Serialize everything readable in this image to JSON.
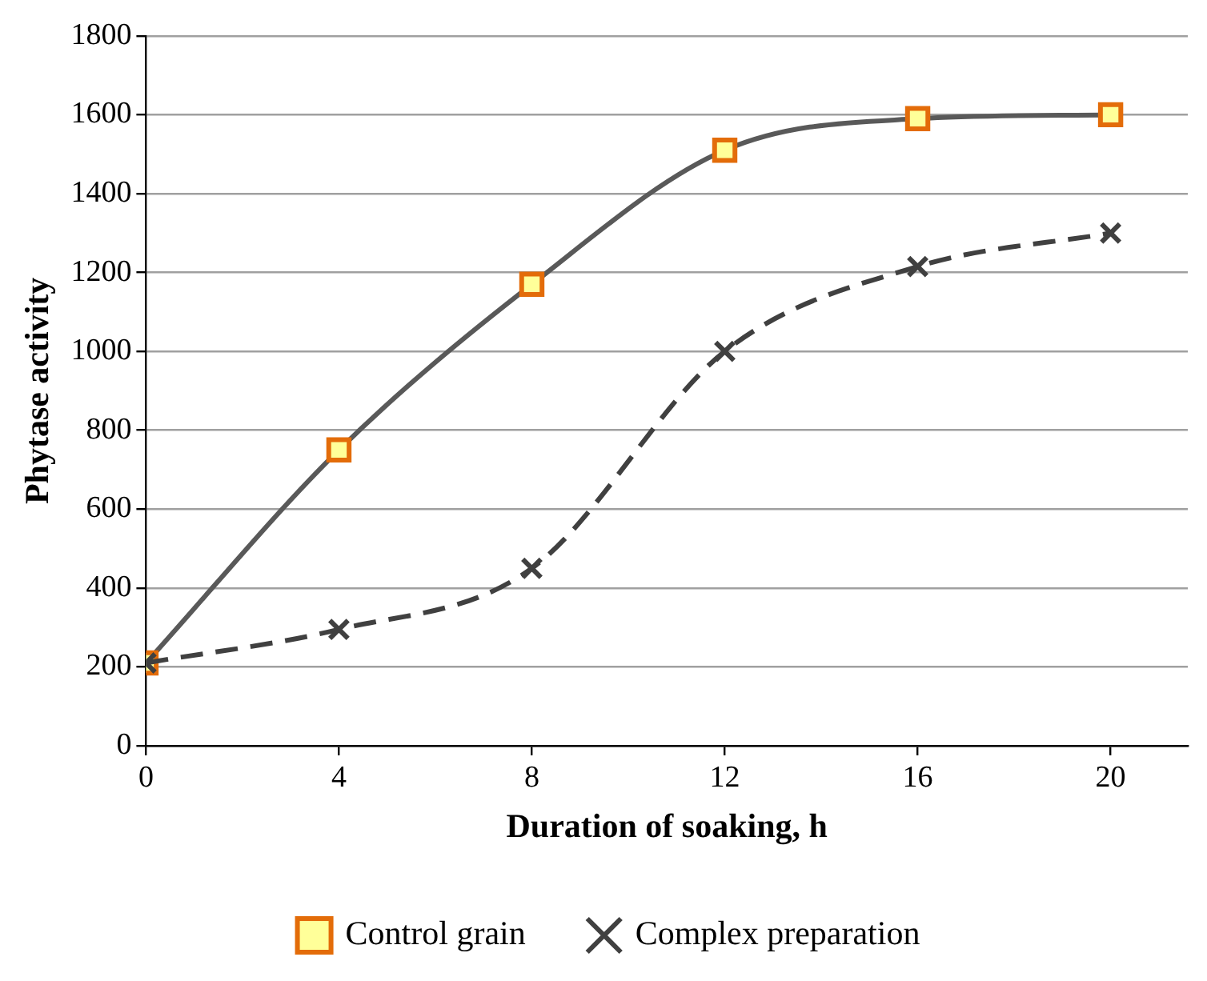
{
  "chart_data": {
    "type": "line",
    "xlabel": "Duration of soaking, h",
    "ylabel": "Phytase activity",
    "x": [
      0,
      4,
      8,
      12,
      16,
      20
    ],
    "series": [
      {
        "name": "Control grain",
        "color": "#595959",
        "values": [
          210,
          750,
          1170,
          1510,
          1590,
          1600
        ],
        "marker": "square",
        "line_style": "solid"
      },
      {
        "name": "Complex preparation",
        "color": "#404040",
        "values": [
          210,
          295,
          450,
          1000,
          1215,
          1300
        ],
        "marker": "cross",
        "line_style": "dashed"
      }
    ],
    "xlim": [
      0,
      21.6
    ],
    "xticks": [
      0,
      4,
      8,
      12,
      16,
      20
    ],
    "ylim": [
      0,
      1800
    ],
    "yticks": [
      0,
      200,
      400,
      600,
      800,
      1000,
      1200,
      1400,
      1600,
      1800
    ],
    "grid": "y",
    "legend": "bottom"
  }
}
